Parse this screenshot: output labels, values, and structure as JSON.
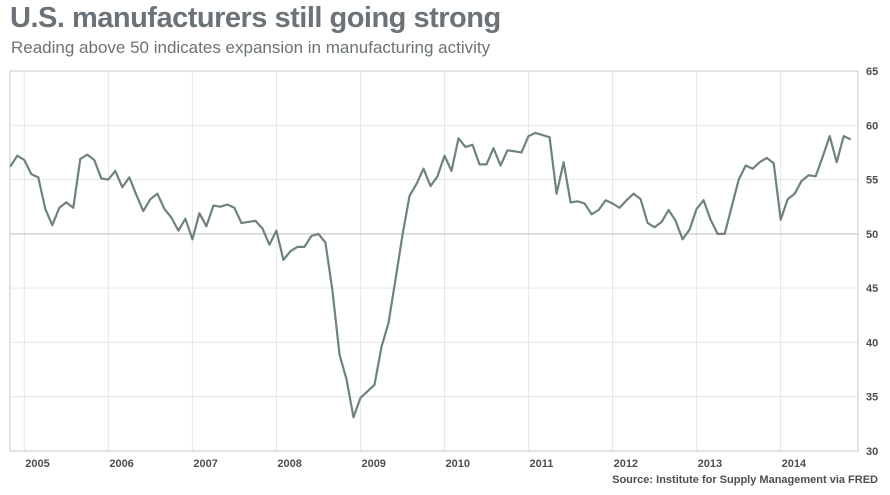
{
  "chart_data": {
    "type": "line",
    "title": "U.S. manufacturers still going strong",
    "subtitle": "Reading above 50 indicates expansion in manufacturing activity",
    "source": "Source: Institute for Supply Management via FRED",
    "xlabel": "",
    "ylabel": "",
    "xlim": [
      2004.83,
      2014.92
    ],
    "ylim": [
      30,
      65
    ],
    "x_ticks": [
      2005,
      2006,
      2007,
      2008,
      2009,
      2010,
      2011,
      2012,
      2013,
      2014
    ],
    "y_ticks": [
      30,
      35,
      40,
      45,
      50,
      55,
      60,
      65
    ],
    "y_axis_side": "right",
    "grid": true,
    "reference_line": 50,
    "colors": {
      "line": "#6e8282",
      "grid": "#e6e6e6",
      "reference": "#c8c8c8",
      "frame": "#c8c8c8",
      "text": "#6b7378"
    },
    "series": [
      {
        "start": "2004-11",
        "frequency": "monthly",
        "values": [
          56.2,
          57.2,
          56.8,
          55.5,
          55.2,
          52.3,
          50.8,
          52.4,
          52.9,
          52.4,
          56.9,
          57.3,
          56.8,
          55.1,
          55.0,
          55.8,
          54.3,
          55.2,
          53.6,
          52.1,
          53.2,
          53.7,
          52.3,
          51.5,
          50.3,
          51.4,
          49.5,
          51.9,
          50.7,
          52.6,
          52.5,
          52.7,
          52.4,
          51.0,
          51.1,
          51.2,
          50.5,
          49.0,
          50.3,
          47.6,
          48.4,
          48.8,
          48.8,
          49.8,
          50.0,
          49.2,
          44.8,
          38.9,
          36.6,
          33.1,
          34.9,
          35.5,
          36.1,
          39.6,
          41.8,
          45.8,
          49.9,
          53.5,
          54.6,
          56.0,
          54.4,
          55.3,
          57.2,
          55.8,
          58.8,
          58.0,
          58.2,
          56.4,
          56.4,
          57.9,
          56.3,
          57.7,
          57.6,
          57.5,
          59.0,
          59.3,
          59.1,
          58.9,
          53.7,
          56.6,
          52.9,
          53.0,
          52.8,
          51.8,
          52.2,
          53.1,
          52.8,
          52.4,
          53.1,
          53.7,
          53.2,
          51.0,
          50.6,
          51.1,
          52.2,
          51.2,
          49.5,
          50.4,
          52.3,
          53.1,
          51.3,
          50.0,
          50.0,
          52.5,
          55.0,
          56.3,
          56.0,
          56.6,
          57.0,
          56.5,
          51.3,
          53.2,
          53.7,
          54.9,
          55.4,
          55.3,
          57.1,
          59.0,
          56.6,
          59.0,
          58.7
        ]
      }
    ]
  }
}
